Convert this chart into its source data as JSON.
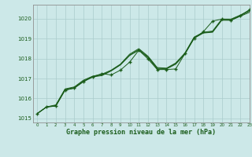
{
  "title": "Graphe pression niveau de la mer (hPa)",
  "background_color": "#cce8e8",
  "grid_color": "#aacccc",
  "line_color": "#1a5c1a",
  "xlim": [
    -0.5,
    23
  ],
  "ylim": [
    1014.8,
    1020.7
  ],
  "yticks": [
    1015,
    1016,
    1017,
    1018,
    1019,
    1020
  ],
  "xticks": [
    0,
    1,
    2,
    3,
    4,
    5,
    6,
    7,
    8,
    9,
    10,
    11,
    12,
    13,
    14,
    15,
    16,
    17,
    18,
    19,
    20,
    21,
    22,
    23
  ],
  "series1": [
    1015.25,
    1015.58,
    1015.62,
    1016.42,
    1016.52,
    1016.85,
    1017.08,
    1017.15,
    1017.38,
    1017.68,
    1018.15,
    1018.42,
    1018.05,
    1017.48,
    1017.48,
    1017.72,
    1018.22,
    1019.02,
    1019.28,
    1019.32,
    1019.92,
    1019.92,
    1020.12,
    1020.32
  ],
  "series2": [
    1015.25,
    1015.58,
    1015.65,
    1016.45,
    1016.55,
    1016.88,
    1017.1,
    1017.18,
    1017.4,
    1017.7,
    1018.18,
    1018.45,
    1018.08,
    1017.52,
    1017.5,
    1017.75,
    1018.25,
    1019.05,
    1019.3,
    1019.35,
    1019.95,
    1019.95,
    1020.15,
    1020.38
  ],
  "series3": [
    1015.25,
    1015.58,
    1015.68,
    1016.48,
    1016.58,
    1016.92,
    1017.12,
    1017.22,
    1017.42,
    1017.72,
    1018.22,
    1018.5,
    1018.12,
    1017.55,
    1017.52,
    1017.78,
    1018.28,
    1019.08,
    1019.32,
    1019.38,
    1019.98,
    1019.98,
    1020.18,
    1020.42
  ],
  "series4": [
    1015.25,
    1015.58,
    1015.62,
    1016.42,
    1016.52,
    1016.85,
    1017.08,
    1017.25,
    1017.18,
    1017.42,
    1017.82,
    1018.42,
    1017.98,
    1017.45,
    1017.45,
    1017.48,
    1018.25,
    1019.02,
    1019.35,
    1019.88,
    1019.98,
    1019.92,
    1020.15,
    1020.45
  ]
}
